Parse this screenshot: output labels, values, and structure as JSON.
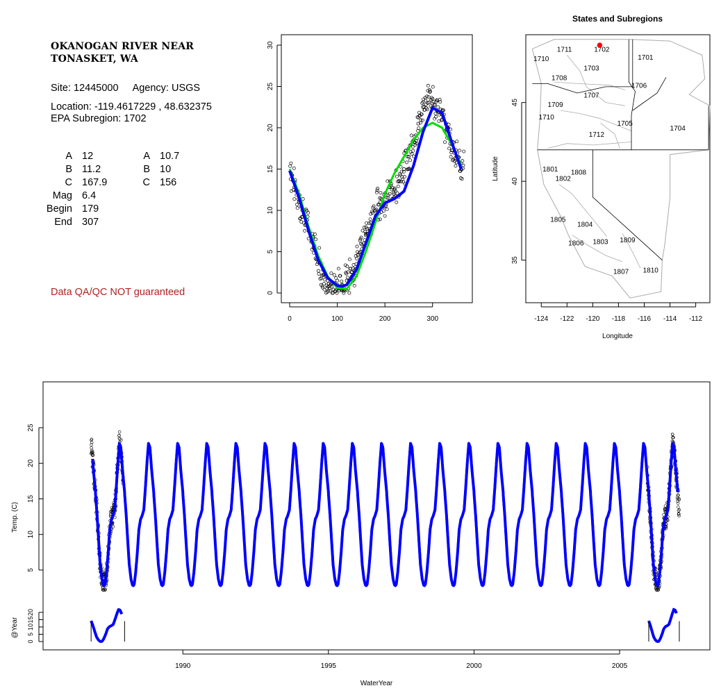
{
  "station": {
    "title_line1": "OKANOGAN RIVER NEAR",
    "title_line2": "TONASKET, WA",
    "site": "Site: 12445000",
    "agency": "Agency: USGS",
    "location": "Location: -119.4617229 , 48.632375",
    "subregion": "EPA Subregion: 1702",
    "params_left": [
      {
        "label": "A",
        "value": "12"
      },
      {
        "label": "B",
        "value": "11.2"
      },
      {
        "label": "C",
        "value": "167.9"
      },
      {
        "label": "Mag",
        "value": "6.4"
      },
      {
        "label": "Begin",
        "value": "179"
      },
      {
        "label": "End",
        "value": "307"
      }
    ],
    "params_right": [
      {
        "label": "A",
        "value": "10.7"
      },
      {
        "label": "B",
        "value": "10"
      },
      {
        "label": "C",
        "value": "156"
      }
    ],
    "qa_note": "Data QA/QC NOT guaranteed"
  },
  "colors": {
    "fit_blue": "#0000ff",
    "fit_green": "#00dd00",
    "marker_red": "#ff0000",
    "qa_red": "#b22222",
    "region_gray": "#aaaaaa"
  },
  "chart_data": [
    {
      "type": "scatter",
      "xlim": [
        0,
        366
      ],
      "ylim": [
        0,
        30
      ],
      "xticks": [
        0,
        100,
        200,
        300
      ],
      "yticks": [
        0,
        5,
        10,
        15,
        20,
        25,
        30
      ],
      "series": [
        {
          "kind": "points",
          "x": [
            3,
            10,
            20,
            30,
            40,
            50,
            60,
            70,
            80,
            90,
            100,
            110,
            120,
            130,
            140,
            150,
            160,
            170,
            180,
            190,
            200,
            210,
            220,
            230,
            240,
            250,
            260,
            270,
            280,
            290,
            300,
            310,
            320,
            330,
            340,
            350,
            360
          ],
          "values": [
            14.5,
            12.8,
            11,
            9.5,
            7.5,
            5.5,
            4,
            2.8,
            1.5,
            1.2,
            1,
            1,
            1.5,
            2.5,
            3.5,
            5,
            7,
            8.5,
            10,
            11,
            11,
            12,
            12.5,
            13.5,
            15,
            16.5,
            18.5,
            20.5,
            22.5,
            23,
            23.5,
            22,
            21,
            20,
            18,
            16.5,
            15
          ]
        },
        {
          "kind": "line",
          "color": "blue",
          "x": [
            0,
            20,
            40,
            60,
            80,
            100,
            110,
            120,
            140,
            160,
            180,
            200,
            220,
            240,
            260,
            280,
            300,
            320,
            340,
            360
          ],
          "values": [
            14.8,
            11.5,
            7.5,
            4,
            1.8,
            0.9,
            0.8,
            1,
            2.8,
            6,
            9.3,
            10.9,
            11.4,
            12.3,
            15.4,
            19.5,
            22.4,
            21.8,
            18.3,
            15
          ]
        },
        {
          "kind": "line",
          "color": "green",
          "x": [
            0,
            20,
            40,
            60,
            80,
            100,
            120,
            140,
            160,
            180,
            200,
            220,
            240,
            260,
            280,
            300,
            320,
            340,
            360
          ],
          "values": [
            15,
            12,
            8,
            4.5,
            2,
            0.6,
            0.5,
            2,
            5,
            8.5,
            12,
            14.5,
            16.5,
            18.5,
            20,
            20.6,
            20,
            18,
            15.5
          ]
        }
      ]
    },
    {
      "type": "map",
      "title": "States and Subregions",
      "xlabel": "Longitude",
      "ylabel": "Latitude",
      "xlim": [
        -125.2,
        -110.9
      ],
      "ylim": [
        32.3,
        49.3
      ],
      "xticks": [
        -124,
        -122,
        -120,
        -118,
        -116,
        -114,
        -112
      ],
      "yticks": [
        35,
        40,
        45
      ],
      "marker": {
        "lon": -119.46,
        "lat": 48.63,
        "color": "red"
      },
      "region_labels": [
        {
          "label": "1711",
          "lon": -122.2,
          "lat": 48.4
        },
        {
          "label": "1702",
          "lon": -119.3,
          "lat": 48.4
        },
        {
          "label": "1710",
          "lon": -124.0,
          "lat": 47.8
        },
        {
          "label": "1701",
          "lon": -115.9,
          "lat": 47.9
        },
        {
          "label": "1703",
          "lon": -120.1,
          "lat": 47.2
        },
        {
          "label": "1708",
          "lon": -122.6,
          "lat": 46.6
        },
        {
          "label": "1706",
          "lon": -116.4,
          "lat": 46.1
        },
        {
          "label": "1707",
          "lon": -120.1,
          "lat": 45.5
        },
        {
          "label": "1709",
          "lon": -122.9,
          "lat": 44.9
        },
        {
          "label": "1710",
          "lon": -123.6,
          "lat": 44.1
        },
        {
          "label": "1705",
          "lon": -117.5,
          "lat": 43.7
        },
        {
          "label": "1704",
          "lon": -113.4,
          "lat": 43.4
        },
        {
          "label": "1712",
          "lon": -119.7,
          "lat": 43.0
        },
        {
          "label": "1801",
          "lon": -123.3,
          "lat": 40.8
        },
        {
          "label": "1808",
          "lon": -121.1,
          "lat": 40.6
        },
        {
          "label": "1802",
          "lon": -122.3,
          "lat": 40.2
        },
        {
          "label": "1805",
          "lon": -122.7,
          "lat": 37.6
        },
        {
          "label": "1804",
          "lon": -120.6,
          "lat": 37.3
        },
        {
          "label": "1806",
          "lon": -121.3,
          "lat": 36.1
        },
        {
          "label": "1803",
          "lon": -119.4,
          "lat": 36.2
        },
        {
          "label": "1809",
          "lon": -117.3,
          "lat": 36.3
        },
        {
          "label": "1807",
          "lon": -117.8,
          "lat": 34.3
        },
        {
          "label": "1810",
          "lon": -115.5,
          "lat": 34.4
        }
      ]
    },
    {
      "type": "line",
      "xlabel": "WaterYear",
      "ylabel": "Temp. (C)",
      "ylabel2": "@Year",
      "xlim": [
        1985.2,
        2008.1
      ],
      "ylim": [
        -1.5,
        30.5
      ],
      "xticks": [
        1990,
        1995,
        2000,
        2005
      ],
      "yticks": [
        5,
        10,
        15,
        20,
        25
      ],
      "yticks2": [
        0,
        5,
        10,
        15,
        20
      ],
      "fit": {
        "start": 1986.9,
        "end": 2007.0,
        "peak": 22.8,
        "trough": 2.8
      },
      "observed_periods": [
        [
          1986.85,
          1987.95
        ],
        [
          2005.95,
          2007.05
        ]
      ],
      "observed_max": [
        24.5,
        26.5
      ],
      "inset_segments": [
        [
          1986.85,
          1988.0
        ],
        [
          2006.0,
          2007.05
        ]
      ]
    }
  ]
}
